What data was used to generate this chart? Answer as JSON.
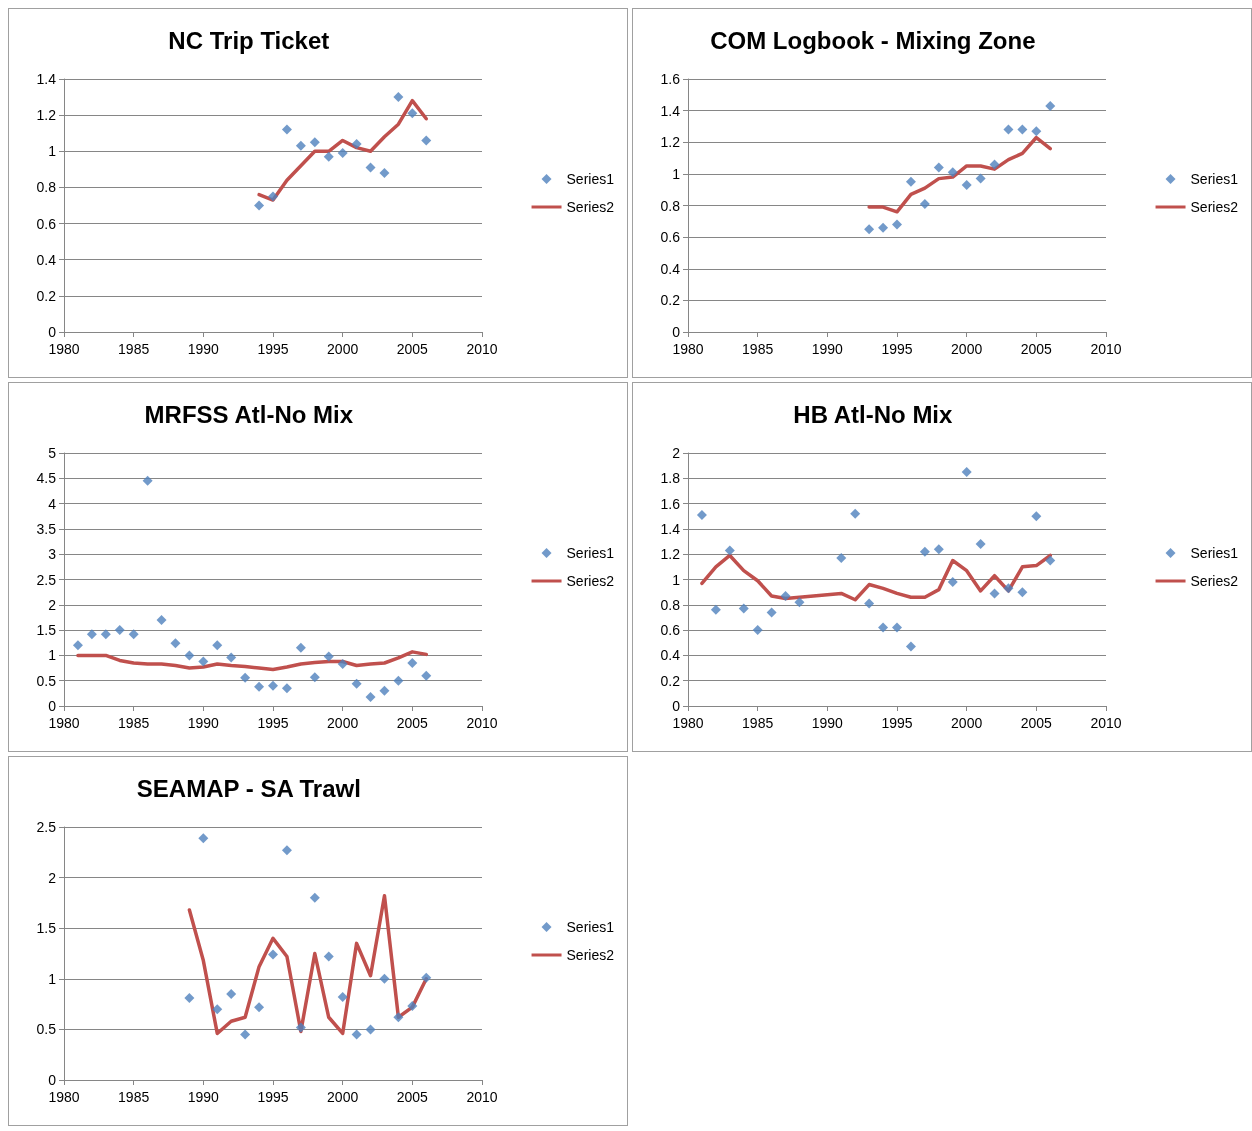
{
  "chart_data": [
    {
      "type": "scatter",
      "title": "NC Trip Ticket",
      "x": [
        1994,
        1995,
        1996,
        1997,
        1998,
        1999,
        2000,
        2001,
        2002,
        2003,
        2004,
        2005,
        2006
      ],
      "series": [
        {
          "name": "Series1",
          "marker": "diamond",
          "color": "#4f81bd",
          "values": [
            0.7,
            0.75,
            1.12,
            1.03,
            1.05,
            0.97,
            0.99,
            1.04,
            0.91,
            0.88,
            1.3,
            1.21,
            1.06
          ]
        },
        {
          "name": "Series2",
          "type": "line",
          "color": "#c0504d",
          "values": [
            0.76,
            0.73,
            0.84,
            0.92,
            1.0,
            1.0,
            1.06,
            1.02,
            1.0,
            1.08,
            1.15,
            1.28,
            1.18
          ]
        }
      ],
      "xlim": [
        1980,
        2010
      ],
      "xticks": [
        1980,
        1985,
        1990,
        1995,
        2000,
        2005,
        2010
      ],
      "ylim": [
        0,
        1.4
      ],
      "yticks": [
        0,
        0.2,
        0.4,
        0.6,
        0.8,
        1,
        1.2,
        1.4
      ],
      "grid": "y",
      "legend": "right"
    },
    {
      "type": "scatter",
      "title": "COM Logbook - Mixing Zone",
      "x": [
        1993,
        1994,
        1995,
        1996,
        1997,
        1998,
        1999,
        2000,
        2001,
        2002,
        2003,
        2004,
        2005,
        2006
      ],
      "series": [
        {
          "name": "Series1",
          "marker": "diamond",
          "color": "#4f81bd",
          "values": [
            0.65,
            0.66,
            0.68,
            0.95,
            0.81,
            1.04,
            1.01,
            0.93,
            0.97,
            1.06,
            1.28,
            1.28,
            1.27,
            1.43
          ]
        },
        {
          "name": "Series2",
          "type": "line",
          "color": "#c0504d",
          "values": [
            0.79,
            0.79,
            0.76,
            0.87,
            0.91,
            0.97,
            0.98,
            1.05,
            1.05,
            1.03,
            1.09,
            1.13,
            1.23,
            1.16
          ]
        }
      ],
      "xlim": [
        1980,
        2010
      ],
      "xticks": [
        1980,
        1985,
        1990,
        1995,
        2000,
        2005,
        2010
      ],
      "ylim": [
        0,
        1.6
      ],
      "yticks": [
        0,
        0.2,
        0.4,
        0.6,
        0.8,
        1,
        1.2,
        1.4,
        1.6
      ],
      "grid": "y",
      "legend": "right"
    },
    {
      "type": "scatter",
      "title": "MRFSS Atl-No Mix",
      "x": [
        1981,
        1982,
        1983,
        1984,
        1985,
        1986,
        1987,
        1988,
        1989,
        1990,
        1991,
        1992,
        1993,
        1994,
        1995,
        1996,
        1997,
        1998,
        1999,
        2000,
        2001,
        2002,
        2003,
        2004,
        2005,
        2006
      ],
      "series": [
        {
          "name": "Series1",
          "marker": "diamond",
          "color": "#4f81bd",
          "values": [
            1.2,
            1.42,
            1.42,
            1.5,
            1.42,
            4.45,
            1.7,
            1.24,
            1.0,
            0.88,
            1.2,
            0.96,
            0.56,
            0.38,
            0.4,
            0.35,
            1.15,
            0.57,
            0.98,
            0.83,
            0.44,
            0.18,
            0.3,
            0.5,
            0.85,
            0.6
          ]
        },
        {
          "name": "Series2",
          "type": "line",
          "color": "#c0504d",
          "values": [
            1.0,
            1.0,
            1.0,
            0.9,
            0.85,
            0.83,
            0.83,
            0.8,
            0.75,
            0.77,
            0.83,
            0.8,
            0.78,
            0.75,
            0.72,
            0.77,
            0.83,
            0.86,
            0.88,
            0.88,
            0.8,
            0.83,
            0.85,
            0.95,
            1.07,
            1.02
          ]
        }
      ],
      "xlim": [
        1980,
        2010
      ],
      "xticks": [
        1980,
        1985,
        1990,
        1995,
        2000,
        2005,
        2010
      ],
      "ylim": [
        0,
        5
      ],
      "yticks": [
        0,
        0.5,
        1,
        1.5,
        2,
        2.5,
        3,
        3.5,
        4,
        4.5,
        5
      ],
      "grid": "y",
      "legend": "right"
    },
    {
      "type": "scatter",
      "title": "HB Atl-No Mix",
      "x": [
        1981,
        1982,
        1983,
        1984,
        1985,
        1986,
        1987,
        1988,
        1991,
        1992,
        1993,
        1994,
        1995,
        1996,
        1997,
        1998,
        1999,
        2000,
        2001,
        2002,
        2003,
        2004,
        2005,
        2006
      ],
      "series": [
        {
          "name": "Series1",
          "marker": "diamond",
          "color": "#4f81bd",
          "values": [
            1.51,
            0.76,
            1.23,
            0.77,
            0.6,
            0.74,
            0.87,
            0.82,
            1.17,
            1.52,
            0.81,
            0.62,
            0.62,
            0.47,
            1.22,
            1.24,
            0.98,
            1.85,
            1.28,
            0.89,
            0.93,
            0.9,
            1.5,
            1.15
          ]
        },
        {
          "name": "Series2",
          "type": "line",
          "color": "#c0504d",
          "values": [
            0.97,
            1.1,
            1.19,
            1.07,
            0.99,
            0.87,
            0.85,
            0.86,
            0.89,
            0.84,
            0.96,
            0.93,
            0.89,
            0.86,
            0.86,
            0.92,
            1.15,
            1.07,
            0.91,
            1.03,
            0.91,
            1.1,
            1.11,
            1.19
          ]
        }
      ],
      "xlim": [
        1980,
        2010
      ],
      "xticks": [
        1980,
        1985,
        1990,
        1995,
        2000,
        2005,
        2010
      ],
      "ylim": [
        0,
        2
      ],
      "yticks": [
        0,
        0.2,
        0.4,
        0.6,
        0.8,
        1,
        1.2,
        1.4,
        1.6,
        1.8,
        2
      ],
      "grid": "y",
      "legend": "right"
    },
    {
      "type": "scatter",
      "title": "SEAMAP - SA Trawl",
      "x": [
        1989,
        1990,
        1991,
        1992,
        1993,
        1994,
        1995,
        1996,
        1997,
        1998,
        1999,
        2000,
        2001,
        2002,
        2003,
        2004,
        2005,
        2006
      ],
      "series": [
        {
          "name": "Series1",
          "marker": "diamond",
          "color": "#4f81bd",
          "values": [
            0.81,
            2.39,
            0.7,
            0.85,
            0.45,
            0.72,
            1.24,
            2.27,
            0.52,
            1.8,
            1.22,
            0.82,
            0.45,
            0.5,
            1.0,
            0.62,
            0.73,
            1.01
          ]
        },
        {
          "name": "Series2",
          "type": "line",
          "color": "#c0504d",
          "values": [
            1.68,
            1.18,
            0.46,
            0.58,
            0.62,
            1.12,
            1.4,
            1.22,
            0.48,
            1.25,
            0.62,
            0.46,
            1.35,
            1.03,
            1.82,
            0.62,
            0.72,
            1.0
          ]
        }
      ],
      "xlim": [
        1980,
        2010
      ],
      "xticks": [
        1980,
        1985,
        1990,
        1995,
        2000,
        2005,
        2010
      ],
      "ylim": [
        0,
        2.5
      ],
      "yticks": [
        0,
        0.5,
        1,
        1.5,
        2,
        2.5
      ],
      "grid": "y",
      "legend": "right"
    }
  ]
}
